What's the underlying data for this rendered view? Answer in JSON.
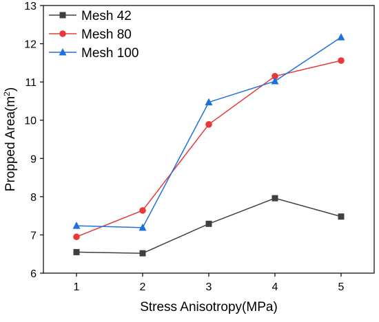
{
  "chart_data": {
    "type": "line",
    "xlabel": "Stress Anisotropy(MPa)",
    "ylabel": "Propped Area(m²)",
    "x": [
      1,
      2,
      3,
      4,
      5
    ],
    "xlim": [
      0.5,
      5.5
    ],
    "ylim": [
      6,
      13
    ],
    "xticks": [
      1,
      2,
      3,
      4,
      5
    ],
    "yticks": [
      6,
      7,
      8,
      9,
      10,
      11,
      12,
      13
    ],
    "legend_position": "top-left",
    "grid": false,
    "series": [
      {
        "name": "Mesh 42",
        "values": [
          6.55,
          6.52,
          7.29,
          7.96,
          7.48
        ],
        "color": "#404040",
        "marker": "square"
      },
      {
        "name": "Mesh 80",
        "values": [
          6.95,
          7.64,
          9.89,
          11.15,
          11.56
        ],
        "color": "#e8383a",
        "marker": "circle"
      },
      {
        "name": "Mesh 100",
        "values": [
          7.24,
          7.19,
          10.47,
          11.02,
          12.17
        ],
        "color": "#1f6fe0",
        "marker": "triangle"
      }
    ]
  }
}
